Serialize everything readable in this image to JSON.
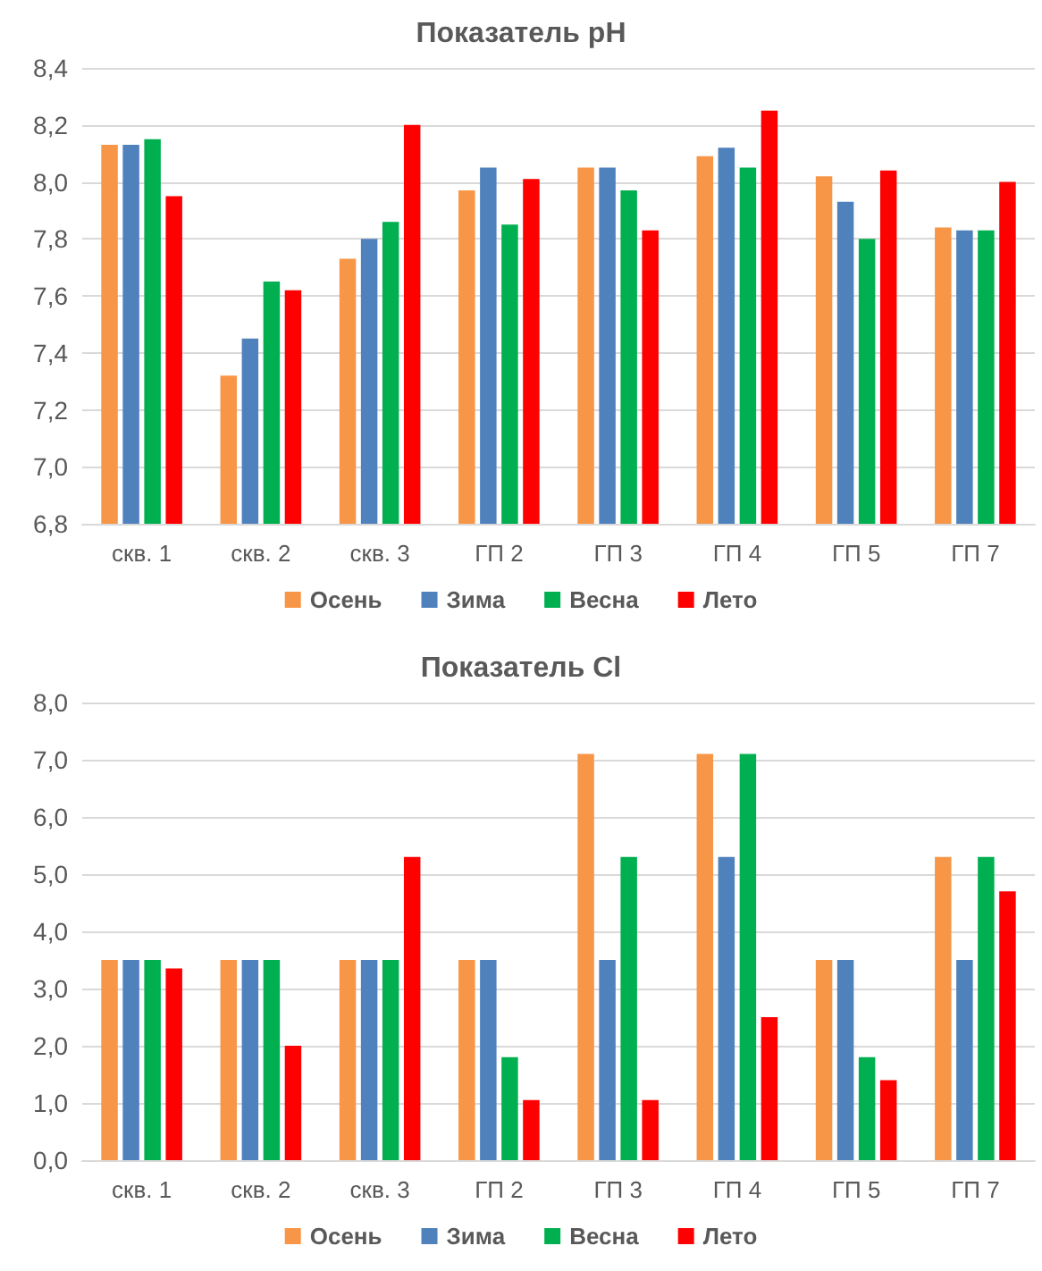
{
  "chart_data": [
    {
      "type": "bar",
      "title": "Показатель pH",
      "categories": [
        "скв. 1",
        "скв. 2",
        "скв. 3",
        "ГП 2",
        "ГП 3",
        "ГП 4",
        "ГП 5",
        "ГП 7"
      ],
      "series": [
        {
          "name": "Осень",
          "color": "#f79646",
          "values": [
            8.13,
            7.32,
            7.73,
            7.97,
            8.05,
            8.09,
            8.02,
            7.84
          ]
        },
        {
          "name": "Зима",
          "color": "#4f81bd",
          "values": [
            8.13,
            7.45,
            7.8,
            8.05,
            8.05,
            8.12,
            7.93,
            7.83
          ]
        },
        {
          "name": "Весна",
          "color": "#00b050",
          "values": [
            8.15,
            7.65,
            7.86,
            7.85,
            7.97,
            8.05,
            7.8,
            7.83
          ]
        },
        {
          "name": "Лето",
          "color": "#ff0000",
          "values": [
            7.95,
            7.62,
            8.2,
            8.01,
            7.83,
            8.25,
            8.04,
            8.0
          ]
        }
      ],
      "ylim": [
        6.8,
        8.4
      ],
      "yticks": [
        {
          "value": 6.8,
          "label": "6,8"
        },
        {
          "value": 7.0,
          "label": "7,0"
        },
        {
          "value": 7.2,
          "label": "7,2"
        },
        {
          "value": 7.4,
          "label": "7,4"
        },
        {
          "value": 7.6,
          "label": "7,6"
        },
        {
          "value": 7.8,
          "label": "7,8"
        },
        {
          "value": 8.0,
          "label": "8,0"
        },
        {
          "value": 8.2,
          "label": "8,2"
        },
        {
          "value": 8.4,
          "label": "8,4"
        }
      ],
      "grid": "y",
      "legend": "bottom"
    },
    {
      "type": "bar",
      "title": "Показатель Cl",
      "categories": [
        "скв. 1",
        "скв. 2",
        "скв. 3",
        "ГП 2",
        "ГП 3",
        "ГП 4",
        "ГП 5",
        "ГП 7"
      ],
      "series": [
        {
          "name": "Осень",
          "color": "#f79646",
          "values": [
            3.5,
            3.5,
            3.5,
            3.5,
            7.1,
            7.1,
            3.5,
            5.3
          ]
        },
        {
          "name": "Зима",
          "color": "#4f81bd",
          "values": [
            3.5,
            3.5,
            3.5,
            3.5,
            3.5,
            5.3,
            3.5,
            3.5
          ]
        },
        {
          "name": "Весна",
          "color": "#00b050",
          "values": [
            3.5,
            3.5,
            3.5,
            1.8,
            5.3,
            7.1,
            1.8,
            5.3
          ]
        },
        {
          "name": "Лето",
          "color": "#ff0000",
          "values": [
            3.35,
            2.0,
            5.3,
            1.05,
            1.05,
            2.5,
            1.4,
            4.7
          ]
        }
      ],
      "ylim": [
        0,
        8
      ],
      "yticks": [
        {
          "value": 0,
          "label": "0,0"
        },
        {
          "value": 1,
          "label": "1,0"
        },
        {
          "value": 2,
          "label": "2,0"
        },
        {
          "value": 3,
          "label": "3,0"
        },
        {
          "value": 4,
          "label": "4,0"
        },
        {
          "value": 5,
          "label": "5,0"
        },
        {
          "value": 6,
          "label": "6,0"
        },
        {
          "value": 7,
          "label": "7,0"
        },
        {
          "value": 8,
          "label": "8,0"
        }
      ],
      "grid": "y",
      "legend": "bottom"
    }
  ]
}
